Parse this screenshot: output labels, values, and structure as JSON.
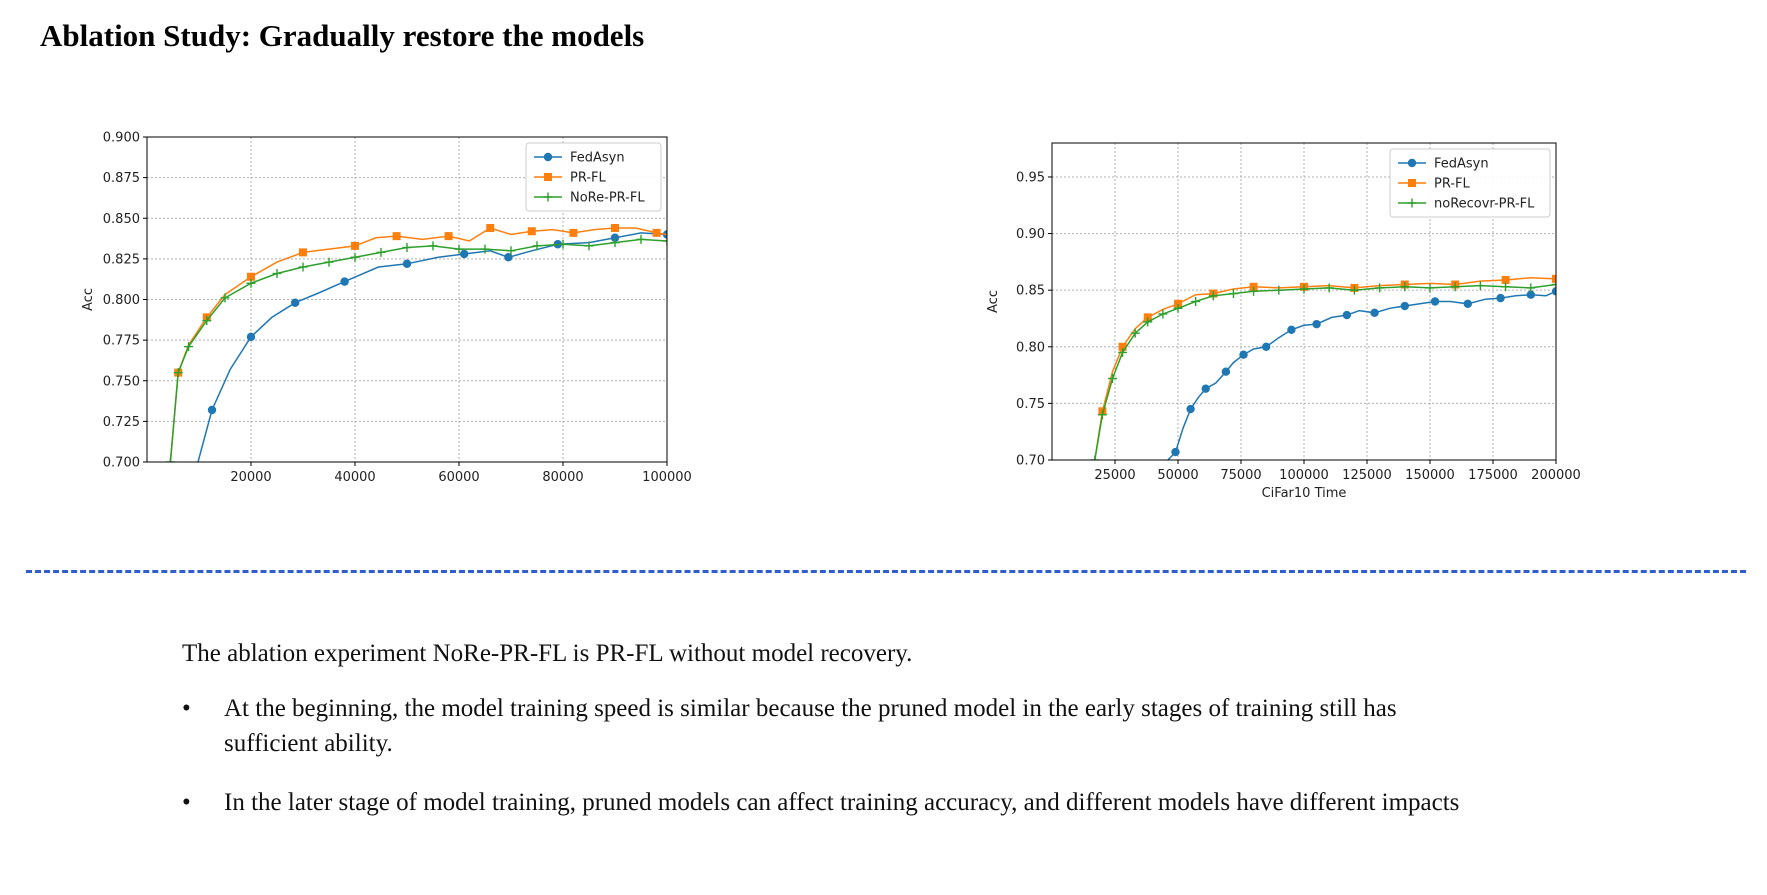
{
  "slide": {
    "title": "Ablation Study: Gradually restore the models",
    "intro": "The ablation experiment NoRe-PR-FL is PR-FL without model recovery.",
    "bullets": [
      "At the beginning, the model training speed is similar because the pruned model in the early stages of training still has sufficient ability.",
      "In the later stage of model training, pruned models can affect training accuracy, and different models have different impacts"
    ],
    "bullet_symbol": "•"
  },
  "colors": {
    "blue": "#1f77b4",
    "orange": "#ff7f0e",
    "green": "#2ca02c",
    "divider": "#2f5fcf"
  },
  "chart_data": [
    {
      "type": "line",
      "title": "",
      "xlabel": "",
      "ylabel": "Acc",
      "xlim": [
        0,
        100000
      ],
      "ylim": [
        0.7,
        0.9
      ],
      "xticks": [
        20000,
        40000,
        60000,
        80000,
        100000
      ],
      "yticks": [
        0.7,
        0.725,
        0.75,
        0.775,
        0.8,
        0.825,
        0.85,
        0.875,
        0.9
      ],
      "ytick_labels": [
        "0.700",
        "0.725",
        "0.750",
        "0.775",
        "0.800",
        "0.825",
        "0.850",
        "0.875",
        "0.900"
      ],
      "grid": true,
      "legend_position": "top-right",
      "series": [
        {
          "name": "FedAsyn",
          "color": "#1f77b4",
          "marker": "circle",
          "x": [
            9800,
            12500,
            16000,
            20000,
            24000,
            28500,
            33000,
            38000,
            44500,
            50000,
            56000,
            61000,
            66000,
            69500,
            74000,
            79000,
            85000,
            90000,
            95000,
            100000
          ],
          "y": [
            0.7,
            0.732,
            0.757,
            0.777,
            0.789,
            0.798,
            0.804,
            0.811,
            0.82,
            0.822,
            0.826,
            0.828,
            0.83,
            0.826,
            0.83,
            0.834,
            0.835,
            0.838,
            0.841,
            0.84
          ]
        },
        {
          "name": "PR-FL",
          "color": "#ff7f0e",
          "marker": "square",
          "x": [
            4500,
            6000,
            8000,
            11500,
            15000,
            20000,
            25000,
            30000,
            35000,
            40000,
            44000,
            48000,
            53000,
            58000,
            62000,
            66000,
            70000,
            74000,
            78000,
            82000,
            86000,
            90000,
            94000,
            98000,
            100000
          ],
          "y": [
            0.7,
            0.755,
            0.772,
            0.789,
            0.803,
            0.814,
            0.823,
            0.829,
            0.831,
            0.833,
            0.838,
            0.839,
            0.837,
            0.839,
            0.836,
            0.844,
            0.84,
            0.842,
            0.843,
            0.841,
            0.843,
            0.844,
            0.844,
            0.841,
            0.84
          ]
        },
        {
          "name": "NoRe-PR-FL",
          "color": "#2ca02c",
          "marker": "plus",
          "x": [
            4500,
            6000,
            8000,
            11500,
            15000,
            20000,
            25000,
            30000,
            35000,
            40000,
            45000,
            50000,
            55000,
            60000,
            65000,
            70000,
            75000,
            80000,
            85000,
            90000,
            95000,
            100000
          ],
          "y": [
            0.7,
            0.755,
            0.771,
            0.787,
            0.801,
            0.81,
            0.816,
            0.82,
            0.823,
            0.826,
            0.829,
            0.832,
            0.833,
            0.831,
            0.831,
            0.83,
            0.833,
            0.834,
            0.833,
            0.835,
            0.837,
            0.836
          ]
        }
      ]
    },
    {
      "type": "line",
      "title": "",
      "xlabel": "CiFar10 Time",
      "ylabel": "Acc",
      "xlim": [
        0,
        200000
      ],
      "ylim": [
        0.7,
        0.98
      ],
      "xticks": [
        25000,
        50000,
        75000,
        100000,
        125000,
        150000,
        175000,
        200000
      ],
      "yticks": [
        0.7,
        0.75,
        0.8,
        0.85,
        0.9,
        0.95
      ],
      "ytick_labels": [
        "0.70",
        "0.75",
        "0.80",
        "0.85",
        "0.90",
        "0.95"
      ],
      "grid": true,
      "legend_position": "top-right",
      "series": [
        {
          "name": "FedAsyn",
          "color": "#1f77b4",
          "marker": "circle",
          "x": [
            46000,
            49000,
            52000,
            55000,
            58000,
            61000,
            65000,
            69000,
            72000,
            76000,
            80000,
            85000,
            90000,
            95000,
            100000,
            105000,
            111000,
            117000,
            122000,
            128000,
            134000,
            140000,
            146000,
            152000,
            158000,
            165000,
            172000,
            178000,
            184000,
            190000,
            196000,
            200000
          ],
          "y": [
            0.7,
            0.707,
            0.728,
            0.745,
            0.755,
            0.763,
            0.768,
            0.778,
            0.786,
            0.793,
            0.798,
            0.8,
            0.808,
            0.815,
            0.819,
            0.82,
            0.826,
            0.828,
            0.832,
            0.83,
            0.834,
            0.836,
            0.838,
            0.84,
            0.84,
            0.838,
            0.842,
            0.843,
            0.845,
            0.846,
            0.845,
            0.849
          ]
        },
        {
          "name": "PR-FL",
          "color": "#ff7f0e",
          "marker": "square",
          "x": [
            17000,
            20000,
            24000,
            28000,
            33000,
            38000,
            44000,
            50000,
            57000,
            64000,
            72000,
            80000,
            90000,
            100000,
            110000,
            120000,
            130000,
            140000,
            150000,
            160000,
            170000,
            180000,
            190000,
            200000
          ],
          "y": [
            0.7,
            0.743,
            0.778,
            0.8,
            0.816,
            0.826,
            0.833,
            0.838,
            0.846,
            0.847,
            0.851,
            0.853,
            0.852,
            0.853,
            0.854,
            0.852,
            0.854,
            0.855,
            0.856,
            0.855,
            0.858,
            0.859,
            0.861,
            0.86
          ]
        },
        {
          "name": "noRecovr-PR-FL",
          "color": "#2ca02c",
          "marker": "plus",
          "x": [
            17000,
            20000,
            24000,
            28000,
            33000,
            38000,
            44000,
            50000,
            57000,
            64000,
            72000,
            80000,
            90000,
            100000,
            110000,
            120000,
            130000,
            140000,
            150000,
            160000,
            170000,
            180000,
            190000,
            200000
          ],
          "y": [
            0.7,
            0.74,
            0.772,
            0.795,
            0.812,
            0.822,
            0.829,
            0.834,
            0.84,
            0.845,
            0.847,
            0.849,
            0.85,
            0.851,
            0.852,
            0.85,
            0.852,
            0.853,
            0.852,
            0.853,
            0.854,
            0.853,
            0.852,
            0.855
          ]
        }
      ]
    }
  ]
}
